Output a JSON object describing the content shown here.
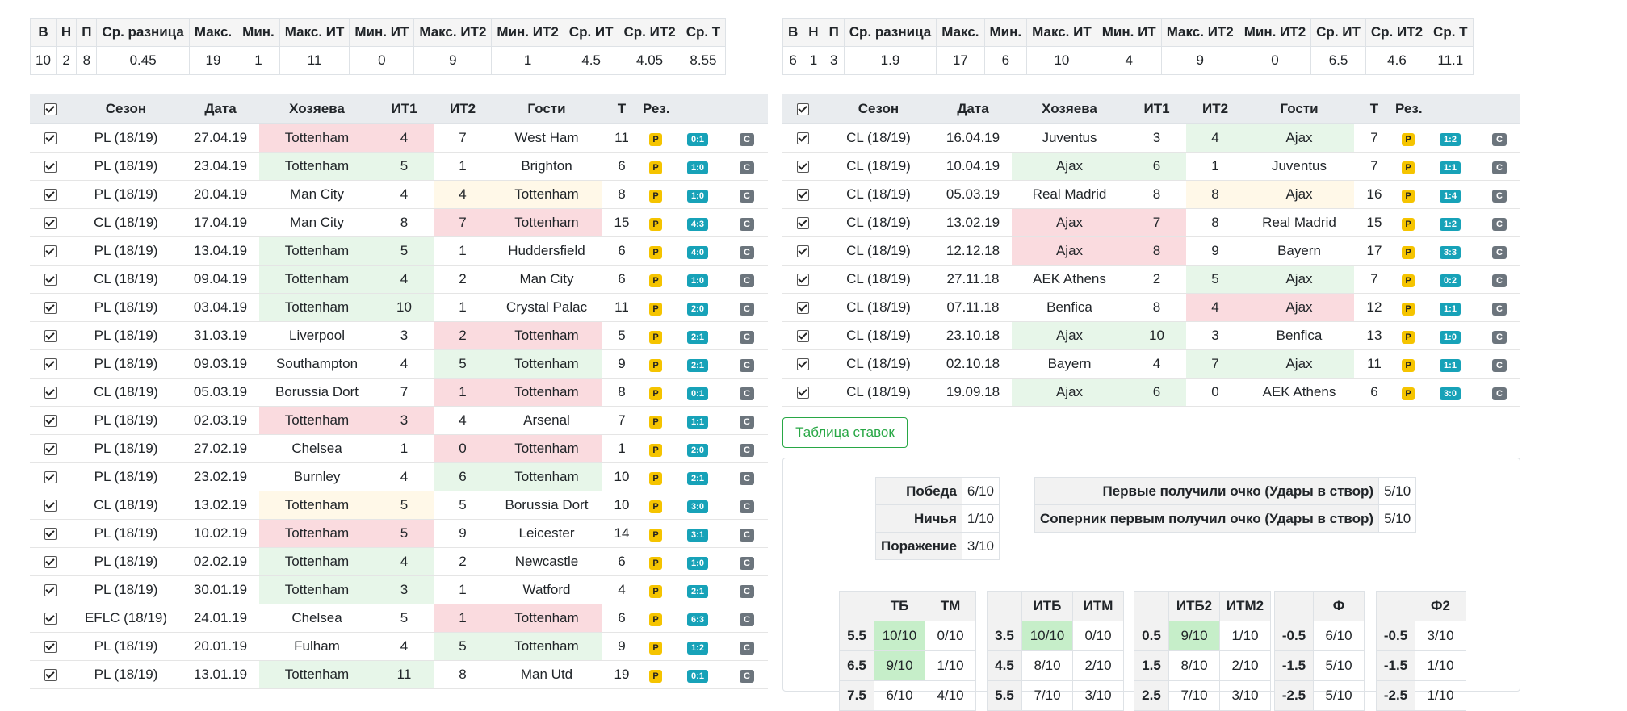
{
  "stats_headers": [
    "В",
    "Н",
    "П",
    "Ср. разница",
    "Макс.",
    "Мин.",
    "Макс. ИТ",
    "Мин. ИТ",
    "Макс. ИТ2",
    "Мин. ИТ2",
    "Ср. ИТ",
    "Ср. ИТ2",
    "Ср. Т"
  ],
  "left_stats": [
    "10",
    "2",
    "8",
    "0.45",
    "19",
    "1",
    "11",
    "0",
    "9",
    "1",
    "4.5",
    "4.05",
    "8.55"
  ],
  "right_stats": [
    "6",
    "1",
    "3",
    "1.9",
    "17",
    "6",
    "10",
    "4",
    "9",
    "0",
    "6.5",
    "4.6",
    "11.1"
  ],
  "match_headers": [
    "Сезон",
    "Дата",
    "Хозяева",
    "ИТ1",
    "ИТ2",
    "Гости",
    "Т",
    "Рез."
  ],
  "badge_p": "P",
  "badge_c": "C",
  "left_matches": [
    {
      "season": "PL (18/19)",
      "date": "27.04.19",
      "home": "Tottenham",
      "it1": "4",
      "it2": "7",
      "away": "West Ham",
      "t": "11",
      "res": "0:1",
      "hl": "home",
      "hc": "red"
    },
    {
      "season": "PL (18/19)",
      "date": "23.04.19",
      "home": "Tottenham",
      "it1": "5",
      "it2": "1",
      "away": "Brighton",
      "t": "6",
      "res": "1:0",
      "hl": "home",
      "hc": "green"
    },
    {
      "season": "PL (18/19)",
      "date": "20.04.19",
      "home": "Man City",
      "it1": "4",
      "it2": "4",
      "away": "Tottenham",
      "t": "8",
      "res": "1:0",
      "hl": "away",
      "hc": "yellow"
    },
    {
      "season": "CL (18/19)",
      "date": "17.04.19",
      "home": "Man City",
      "it1": "8",
      "it2": "7",
      "away": "Tottenham",
      "t": "15",
      "res": "4:3",
      "hl": "away",
      "hc": "red"
    },
    {
      "season": "PL (18/19)",
      "date": "13.04.19",
      "home": "Tottenham",
      "it1": "5",
      "it2": "1",
      "away": "Huddersfield",
      "t": "6",
      "res": "4:0",
      "hl": "home",
      "hc": "green"
    },
    {
      "season": "CL (18/19)",
      "date": "09.04.19",
      "home": "Tottenham",
      "it1": "4",
      "it2": "2",
      "away": "Man City",
      "t": "6",
      "res": "1:0",
      "hl": "home",
      "hc": "green"
    },
    {
      "season": "PL (18/19)",
      "date": "03.04.19",
      "home": "Tottenham",
      "it1": "10",
      "it2": "1",
      "away": "Crystal Palac",
      "t": "11",
      "res": "2:0",
      "hl": "home",
      "hc": "green"
    },
    {
      "season": "PL (18/19)",
      "date": "31.03.19",
      "home": "Liverpool",
      "it1": "3",
      "it2": "2",
      "away": "Tottenham",
      "t": "5",
      "res": "2:1",
      "hl": "away",
      "hc": "red"
    },
    {
      "season": "PL (18/19)",
      "date": "09.03.19",
      "home": "Southampton",
      "it1": "4",
      "it2": "5",
      "away": "Tottenham",
      "t": "9",
      "res": "2:1",
      "hl": "away",
      "hc": "green"
    },
    {
      "season": "CL (18/19)",
      "date": "05.03.19",
      "home": "Borussia Dort",
      "it1": "7",
      "it2": "1",
      "away": "Tottenham",
      "t": "8",
      "res": "0:1",
      "hl": "away",
      "hc": "red"
    },
    {
      "season": "PL (18/19)",
      "date": "02.03.19",
      "home": "Tottenham",
      "it1": "3",
      "it2": "4",
      "away": "Arsenal",
      "t": "7",
      "res": "1:1",
      "hl": "home",
      "hc": "red"
    },
    {
      "season": "PL (18/19)",
      "date": "27.02.19",
      "home": "Chelsea",
      "it1": "1",
      "it2": "0",
      "away": "Tottenham",
      "t": "1",
      "res": "2:0",
      "hl": "away",
      "hc": "red"
    },
    {
      "season": "PL (18/19)",
      "date": "23.02.19",
      "home": "Burnley",
      "it1": "4",
      "it2": "6",
      "away": "Tottenham",
      "t": "10",
      "res": "2:1",
      "hl": "away",
      "hc": "green"
    },
    {
      "season": "CL (18/19)",
      "date": "13.02.19",
      "home": "Tottenham",
      "it1": "5",
      "it2": "5",
      "away": "Borussia Dort",
      "t": "10",
      "res": "3:0",
      "hl": "home",
      "hc": "yellow"
    },
    {
      "season": "PL (18/19)",
      "date": "10.02.19",
      "home": "Tottenham",
      "it1": "5",
      "it2": "9",
      "away": "Leicester",
      "t": "14",
      "res": "3:1",
      "hl": "home",
      "hc": "red"
    },
    {
      "season": "PL (18/19)",
      "date": "02.02.19",
      "home": "Tottenham",
      "it1": "4",
      "it2": "2",
      "away": "Newcastle",
      "t": "6",
      "res": "1:0",
      "hl": "home",
      "hc": "green"
    },
    {
      "season": "PL (18/19)",
      "date": "30.01.19",
      "home": "Tottenham",
      "it1": "3",
      "it2": "1",
      "away": "Watford",
      "t": "4",
      "res": "2:1",
      "hl": "home",
      "hc": "green"
    },
    {
      "season": "EFLC (18/19)",
      "date": "24.01.19",
      "home": "Chelsea",
      "it1": "5",
      "it2": "1",
      "away": "Tottenham",
      "t": "6",
      "res": "6:3",
      "hl": "away",
      "hc": "red"
    },
    {
      "season": "PL (18/19)",
      "date": "20.01.19",
      "home": "Fulham",
      "it1": "4",
      "it2": "5",
      "away": "Tottenham",
      "t": "9",
      "res": "1:2",
      "hl": "away",
      "hc": "green"
    },
    {
      "season": "PL (18/19)",
      "date": "13.01.19",
      "home": "Tottenham",
      "it1": "11",
      "it2": "8",
      "away": "Man Utd",
      "t": "19",
      "res": "0:1",
      "hl": "home",
      "hc": "green"
    }
  ],
  "right_matches": [
    {
      "season": "CL (18/19)",
      "date": "16.04.19",
      "home": "Juventus",
      "it1": "3",
      "it2": "4",
      "away": "Ajax",
      "t": "7",
      "res": "1:2",
      "hl": "away",
      "hc": "green"
    },
    {
      "season": "CL (18/19)",
      "date": "10.04.19",
      "home": "Ajax",
      "it1": "6",
      "it2": "1",
      "away": "Juventus",
      "t": "7",
      "res": "1:1",
      "hl": "home",
      "hc": "green"
    },
    {
      "season": "CL (18/19)",
      "date": "05.03.19",
      "home": "Real Madrid",
      "it1": "8",
      "it2": "8",
      "away": "Ajax",
      "t": "16",
      "res": "1:4",
      "hl": "away",
      "hc": "yellow"
    },
    {
      "season": "CL (18/19)",
      "date": "13.02.19",
      "home": "Ajax",
      "it1": "7",
      "it2": "8",
      "away": "Real Madrid",
      "t": "15",
      "res": "1:2",
      "hl": "home",
      "hc": "red"
    },
    {
      "season": "CL (18/19)",
      "date": "12.12.18",
      "home": "Ajax",
      "it1": "8",
      "it2": "9",
      "away": "Bayern",
      "t": "17",
      "res": "3:3",
      "hl": "home",
      "hc": "red"
    },
    {
      "season": "CL (18/19)",
      "date": "27.11.18",
      "home": "AEK Athens",
      "it1": "2",
      "it2": "5",
      "away": "Ajax",
      "t": "7",
      "res": "0:2",
      "hl": "away",
      "hc": "green"
    },
    {
      "season": "CL (18/19)",
      "date": "07.11.18",
      "home": "Benfica",
      "it1": "8",
      "it2": "4",
      "away": "Ajax",
      "t": "12",
      "res": "1:1",
      "hl": "away",
      "hc": "red"
    },
    {
      "season": "CL (18/19)",
      "date": "23.10.18",
      "home": "Ajax",
      "it1": "10",
      "it2": "3",
      "away": "Benfica",
      "t": "13",
      "res": "1:0",
      "hl": "home",
      "hc": "green"
    },
    {
      "season": "CL (18/19)",
      "date": "02.10.18",
      "home": "Bayern",
      "it1": "4",
      "it2": "7",
      "away": "Ajax",
      "t": "11",
      "res": "1:1",
      "hl": "away",
      "hc": "green"
    },
    {
      "season": "CL (18/19)",
      "date": "19.09.18",
      "home": "Ajax",
      "it1": "6",
      "it2": "0",
      "away": "AEK Athens",
      "t": "6",
      "res": "3:0",
      "hl": "home",
      "hc": "green"
    }
  ],
  "bet_button": "Таблица ставок",
  "results": [
    {
      "label": "Победа",
      "value": "6/10"
    },
    {
      "label": "Ничья",
      "value": "1/10"
    },
    {
      "label": "Поражение",
      "value": "3/10"
    }
  ],
  "first_point": [
    {
      "label": "Первые получили очко (Удары в створ)",
      "value": "5/10"
    },
    {
      "label": "Соперник первым получил очко (Удары в створ)",
      "value": "5/10"
    }
  ],
  "ou_tables": [
    {
      "h1": "ТБ",
      "h2": "ТМ",
      "rows": [
        [
          "5.5",
          "10/10",
          "0/10"
        ],
        [
          "6.5",
          "9/10",
          "1/10"
        ],
        [
          "7.5",
          "6/10",
          "4/10"
        ]
      ],
      "green": [
        true,
        true,
        false
      ]
    },
    {
      "h1": "ИТБ",
      "h2": "ИТМ",
      "rows": [
        [
          "3.5",
          "10/10",
          "0/10"
        ],
        [
          "4.5",
          "8/10",
          "2/10"
        ],
        [
          "5.5",
          "7/10",
          "3/10"
        ]
      ],
      "green": [
        true,
        false,
        false
      ]
    },
    {
      "h1": "ИТБ2",
      "h2": "ИТМ2",
      "rows": [
        [
          "0.5",
          "9/10",
          "1/10"
        ],
        [
          "1.5",
          "8/10",
          "2/10"
        ],
        [
          "2.5",
          "7/10",
          "3/10"
        ]
      ],
      "green": [
        true,
        false,
        false
      ]
    }
  ],
  "f_tables": [
    {
      "h": "Ф",
      "rows": [
        [
          "-0.5",
          "6/10"
        ],
        [
          "-1.5",
          "5/10"
        ],
        [
          "-2.5",
          "5/10"
        ]
      ]
    },
    {
      "h": "Ф2",
      "rows": [
        [
          "-0.5",
          "3/10"
        ],
        [
          "-1.5",
          "1/10"
        ],
        [
          "-2.5",
          "1/10"
        ]
      ]
    }
  ]
}
